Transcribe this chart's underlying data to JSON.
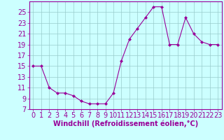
{
  "x": [
    0,
    1,
    2,
    3,
    4,
    5,
    6,
    7,
    8,
    9,
    10,
    11,
    12,
    13,
    14,
    15,
    16,
    17,
    18,
    19,
    20,
    21,
    22,
    23
  ],
  "y": [
    15,
    15,
    11,
    10,
    10,
    9.5,
    8.5,
    8,
    8,
    8,
    10,
    16,
    20,
    22,
    24,
    26,
    26,
    19,
    19,
    24,
    21,
    19.5,
    19,
    19
  ],
  "line_color": "#990099",
  "marker": "D",
  "marker_size": 2,
  "bg_color": "#ccffff",
  "grid_color": "#99cccc",
  "xlabel": "Windchill (Refroidissement éolien,°C)",
  "xlabel_fontsize": 7,
  "ylim": [
    7,
    27
  ],
  "xlim": [
    -0.5,
    23.5
  ],
  "yticks": [
    7,
    9,
    11,
    13,
    15,
    17,
    19,
    21,
    23,
    25
  ],
  "xticks": [
    0,
    1,
    2,
    3,
    4,
    5,
    6,
    7,
    8,
    9,
    10,
    11,
    12,
    13,
    14,
    15,
    16,
    17,
    18,
    19,
    20,
    21,
    22,
    23
  ],
  "tick_fontsize": 7,
  "tick_color": "#990099",
  "spine_color": "#990099",
  "label_color": "#990099"
}
